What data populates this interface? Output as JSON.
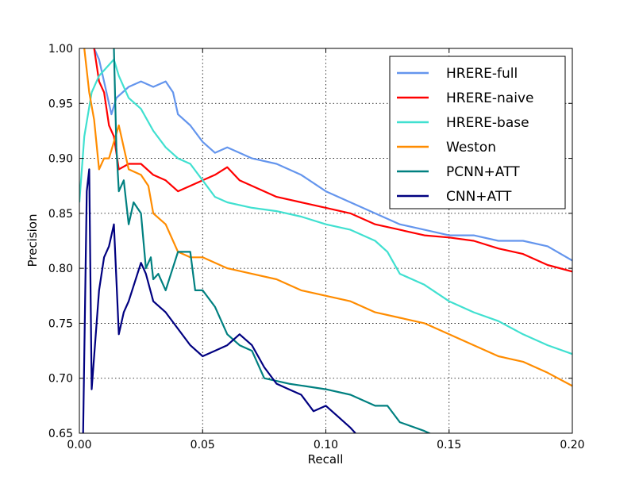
{
  "chart_data": {
    "type": "line",
    "title": "",
    "xlabel": "Recall",
    "ylabel": "Precision",
    "xlim": [
      0.0,
      0.2
    ],
    "ylim": [
      0.65,
      1.0
    ],
    "xticks": [
      "0.00",
      "0.05",
      "0.10",
      "0.15",
      "0.20"
    ],
    "xtick_values": [
      0,
      0.05,
      0.1,
      0.15,
      0.2
    ],
    "yticks": [
      "0.65",
      "0.70",
      "0.75",
      "0.80",
      "0.85",
      "0.90",
      "0.95",
      "1.00"
    ],
    "ytick_values": [
      0.65,
      0.7,
      0.75,
      0.8,
      0.85,
      0.9,
      0.95,
      1.0
    ],
    "grid": true,
    "legend_position": "top-right",
    "series": [
      {
        "name": "HRERE-full",
        "color": "#6495ED",
        "x": [
          0.006,
          0.008,
          0.013,
          0.015,
          0.02,
          0.025,
          0.03,
          0.035,
          0.038,
          0.04,
          0.045,
          0.05,
          0.055,
          0.06,
          0.065,
          0.07,
          0.08,
          0.09,
          0.1,
          0.11,
          0.12,
          0.13,
          0.14,
          0.15,
          0.16,
          0.17,
          0.18,
          0.19,
          0.2
        ],
        "y": [
          1.0,
          0.99,
          0.94,
          0.955,
          0.965,
          0.97,
          0.965,
          0.97,
          0.96,
          0.94,
          0.93,
          0.915,
          0.905,
          0.91,
          0.905,
          0.9,
          0.895,
          0.885,
          0.87,
          0.86,
          0.85,
          0.84,
          0.835,
          0.83,
          0.83,
          0.825,
          0.825,
          0.82,
          0.807
        ]
      },
      {
        "name": "HRERE-naive",
        "color": "#FF0000",
        "x": [
          0.006,
          0.008,
          0.01,
          0.012,
          0.014,
          0.016,
          0.02,
          0.025,
          0.03,
          0.035,
          0.04,
          0.045,
          0.05,
          0.055,
          0.06,
          0.065,
          0.07,
          0.08,
          0.09,
          0.1,
          0.11,
          0.12,
          0.13,
          0.14,
          0.15,
          0.16,
          0.17,
          0.18,
          0.19,
          0.2
        ],
        "y": [
          1.0,
          0.97,
          0.96,
          0.93,
          0.92,
          0.89,
          0.895,
          0.895,
          0.885,
          0.88,
          0.87,
          0.875,
          0.88,
          0.885,
          0.892,
          0.88,
          0.875,
          0.865,
          0.86,
          0.855,
          0.85,
          0.84,
          0.835,
          0.83,
          0.828,
          0.825,
          0.818,
          0.813,
          0.803,
          0.797
        ]
      },
      {
        "name": "HRERE-base",
        "color": "#40E0D0",
        "x": [
          0,
          0.002,
          0.005,
          0.008,
          0.012,
          0.014,
          0.016,
          0.02,
          0.025,
          0.03,
          0.035,
          0.04,
          0.045,
          0.05,
          0.055,
          0.06,
          0.07,
          0.08,
          0.09,
          0.1,
          0.11,
          0.12,
          0.125,
          0.13,
          0.14,
          0.15,
          0.16,
          0.17,
          0.18,
          0.19,
          0.2
        ],
        "y": [
          0.86,
          0.92,
          0.96,
          0.975,
          0.985,
          0.99,
          0.975,
          0.955,
          0.945,
          0.925,
          0.91,
          0.9,
          0.895,
          0.88,
          0.865,
          0.86,
          0.855,
          0.852,
          0.847,
          0.84,
          0.835,
          0.825,
          0.815,
          0.795,
          0.785,
          0.77,
          0.76,
          0.752,
          0.74,
          0.73,
          0.722
        ]
      },
      {
        "name": "Weston",
        "color": "#FF8C00",
        "x": [
          0.002,
          0.004,
          0.006,
          0.008,
          0.01,
          0.012,
          0.014,
          0.016,
          0.018,
          0.02,
          0.025,
          0.028,
          0.03,
          0.035,
          0.04,
          0.045,
          0.05,
          0.06,
          0.07,
          0.08,
          0.09,
          0.1,
          0.11,
          0.12,
          0.13,
          0.14,
          0.15,
          0.16,
          0.17,
          0.18,
          0.19,
          0.2
        ],
        "y": [
          1.0,
          0.96,
          0.935,
          0.89,
          0.9,
          0.9,
          0.915,
          0.93,
          0.91,
          0.89,
          0.885,
          0.875,
          0.85,
          0.84,
          0.815,
          0.81,
          0.81,
          0.8,
          0.795,
          0.79,
          0.78,
          0.775,
          0.77,
          0.76,
          0.755,
          0.75,
          0.74,
          0.73,
          0.72,
          0.715,
          0.705,
          0.693
        ]
      },
      {
        "name": "PCNN+ATT",
        "color": "#008080",
        "x": [
          0.014,
          0.015,
          0.016,
          0.018,
          0.02,
          0.022,
          0.025,
          0.027,
          0.029,
          0.03,
          0.032,
          0.035,
          0.04,
          0.045,
          0.047,
          0.05,
          0.055,
          0.06,
          0.065,
          0.07,
          0.075,
          0.085,
          0.1,
          0.11,
          0.12,
          0.125,
          0.13,
          0.14,
          0.144
        ],
        "y": [
          1.0,
          0.91,
          0.87,
          0.88,
          0.84,
          0.86,
          0.85,
          0.8,
          0.81,
          0.79,
          0.795,
          0.78,
          0.815,
          0.815,
          0.78,
          0.78,
          0.765,
          0.74,
          0.73,
          0.725,
          0.7,
          0.695,
          0.69,
          0.685,
          0.675,
          0.675,
          0.66,
          0.652,
          0.648
        ]
      },
      {
        "name": "CNN+ATT",
        "color": "#000080",
        "x": [
          0.0015,
          0.003,
          0.004,
          0.005,
          0.008,
          0.01,
          0.012,
          0.014,
          0.016,
          0.018,
          0.02,
          0.025,
          0.027,
          0.03,
          0.035,
          0.04,
          0.045,
          0.05,
          0.055,
          0.06,
          0.065,
          0.07,
          0.075,
          0.08,
          0.085,
          0.09,
          0.095,
          0.1,
          0.105,
          0.11,
          0.112
        ],
        "y": [
          0.65,
          0.87,
          0.89,
          0.69,
          0.78,
          0.81,
          0.82,
          0.84,
          0.74,
          0.76,
          0.77,
          0.805,
          0.795,
          0.77,
          0.76,
          0.745,
          0.73,
          0.72,
          0.725,
          0.73,
          0.74,
          0.73,
          0.71,
          0.695,
          0.69,
          0.685,
          0.67,
          0.675,
          0.665,
          0.655,
          0.65
        ]
      }
    ]
  }
}
